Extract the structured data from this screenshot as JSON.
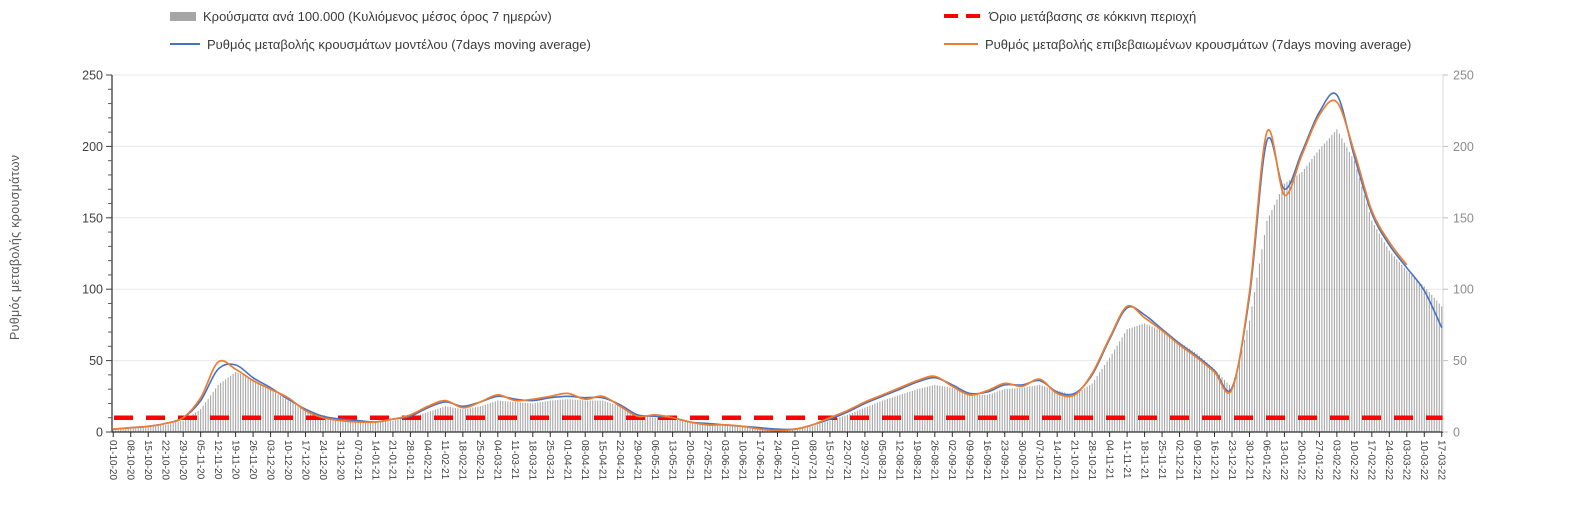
{
  "legend": {
    "items": [
      {
        "label": "Κρούσματα ανά 100.000 (Κυλιόμενος μέσος όρος 7 ημερών)",
        "marker": "bar-swatch",
        "color": "#a6a6a6"
      },
      {
        "label": "Ρυθμός μεταβολής κρουσμάτων μοντέλου (7days moving average)",
        "marker": "line-swatch",
        "color": "#4472c4"
      },
      {
        "label": "Όριο μετάβασης σε κόκκινη περιοχή",
        "marker": "dashed-swatch",
        "color": "#ff0000"
      },
      {
        "label": "Ρυθμός μεταβολής επιβεβαιωμένων κρουσμάτων (7days moving average)",
        "marker": "line-swatch",
        "color": "#ed7d31"
      }
    ]
  },
  "chart_data": {
    "type": "bar+line",
    "title": "",
    "xlabel": "",
    "ylabel": "Ρυθμός μεταβολής κρουσμάτων",
    "ylim": [
      0,
      250
    ],
    "yticks": [
      0,
      50,
      100,
      150,
      200,
      250
    ],
    "y_minor_tick_step": 10,
    "grid": "horizontal-only",
    "legend_position": "top",
    "right_axis": {
      "ticks": [
        0,
        50,
        100,
        150,
        200,
        250
      ]
    },
    "threshold": {
      "label": "Όριο μετάβασης σε κόκκινη περιοχή",
      "value": 10,
      "color": "#ff0000",
      "style": "dashed"
    },
    "sampling_note": "daily 7-day moving-average series sampled at the weekly x-tick dates",
    "categories": [
      "01-10-20",
      "08-10-20",
      "15-10-20",
      "22-10-20",
      "29-10-20",
      "05-11-20",
      "12-11-20",
      "19-11-20",
      "26-11-20",
      "03-12-20",
      "10-12-20",
      "17-12-20",
      "24-12-20",
      "31-12-20",
      "07-01-21",
      "14-01-21",
      "21-01-21",
      "28-01-21",
      "04-02-21",
      "11-02-21",
      "18-02-21",
      "25-02-21",
      "04-03-21",
      "11-03-21",
      "18-03-21",
      "25-03-21",
      "01-04-21",
      "08-04-21",
      "15-04-21",
      "22-04-21",
      "29-04-21",
      "06-05-21",
      "13-05-21",
      "20-05-21",
      "27-05-21",
      "03-06-21",
      "10-06-21",
      "17-06-21",
      "24-06-21",
      "01-07-21",
      "08-07-21",
      "15-07-21",
      "22-07-21",
      "29-07-21",
      "05-08-21",
      "12-08-21",
      "19-08-21",
      "26-08-21",
      "02-09-21",
      "09-09-21",
      "16-09-21",
      "23-09-21",
      "30-09-21",
      "07-10-21",
      "14-10-21",
      "21-10-21",
      "28-10-21",
      "04-11-21",
      "11-11-21",
      "18-11-21",
      "25-11-21",
      "02-12-21",
      "09-12-21",
      "16-12-21",
      "23-12-21",
      "30-12-21",
      "06-01-22",
      "13-01-22",
      "20-01-22",
      "27-01-22",
      "03-02-22",
      "10-02-22",
      "17-02-22",
      "24-02-22",
      "03-03-22",
      "10-03-22",
      "17-03-22"
    ],
    "series": [
      {
        "name": "Κρούσματα ανά 100.000 (Κυλιόμενος μέσος όρος 7 ημερών)",
        "type": "bar",
        "color": "#a3a3a3",
        "values": [
          2,
          3,
          4,
          5,
          8,
          16,
          33,
          42,
          37,
          30,
          22,
          15,
          11,
          9,
          8,
          7,
          8,
          10,
          14,
          18,
          16,
          18,
          22,
          21,
          20,
          22,
          23,
          22,
          22,
          18,
          12,
          10,
          9,
          7,
          6,
          5,
          4,
          3,
          2,
          2,
          4,
          8,
          12,
          17,
          22,
          26,
          30,
          33,
          31,
          26,
          26,
          30,
          31,
          33,
          29,
          26,
          34,
          52,
          72,
          76,
          71,
          63,
          55,
          44,
          31,
          78,
          148,
          174,
          182,
          198,
          212,
          190,
          148,
          127,
          113,
          102,
          88
        ]
      },
      {
        "name": "Ρυθμός μεταβολής κρουσμάτων μοντέλου (7days moving average)",
        "type": "line",
        "color": "#4472c4",
        "values": [
          2,
          3,
          4,
          6,
          10,
          22,
          44,
          47,
          38,
          31,
          23,
          16,
          11,
          9,
          8,
          7,
          9,
          11,
          17,
          21,
          18,
          21,
          25,
          23,
          22,
          24,
          25,
          24,
          24,
          19,
          12,
          11,
          10,
          7,
          6,
          5,
          4,
          3,
          2,
          2,
          5,
          9,
          14,
          20,
          25,
          30,
          35,
          38,
          33,
          27,
          28,
          33,
          33,
          36,
          28,
          27,
          40,
          65,
          87,
          82,
          72,
          62,
          53,
          43,
          31,
          95,
          204,
          170,
          196,
          224,
          236,
          193,
          153,
          131,
          115,
          99,
          73
        ]
      },
      {
        "name": "Ρυθμός μεταβολής επιβεβαιωμένων κρουσμάτων (7days moving average)",
        "type": "line",
        "color": "#ed7d31",
        "values": [
          2,
          3,
          4,
          6,
          10,
          24,
          49,
          44,
          36,
          30,
          24,
          15,
          10,
          8,
          7,
          7,
          9,
          12,
          18,
          22,
          17,
          21,
          26,
          22,
          23,
          25,
          27,
          23,
          25,
          18,
          11,
          12,
          10,
          7,
          5,
          5,
          4,
          2,
          1,
          2,
          5,
          10,
          15,
          21,
          26,
          31,
          36,
          39,
          32,
          26,
          29,
          34,
          32,
          37,
          27,
          26,
          41,
          66,
          88,
          80,
          71,
          61,
          52,
          42,
          30,
          98,
          210,
          166,
          194,
          222,
          231,
          196,
          155,
          133,
          117,
          null,
          null
        ]
      }
    ]
  }
}
